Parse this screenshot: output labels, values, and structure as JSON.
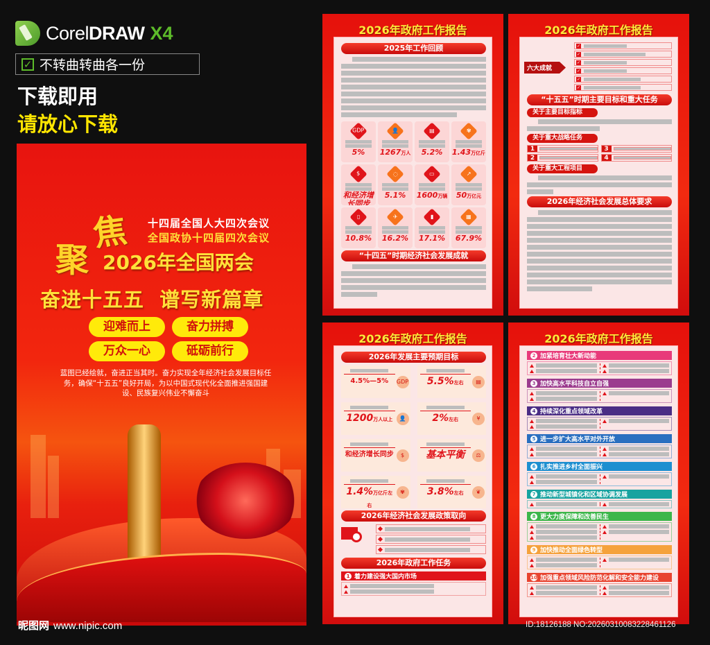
{
  "header": {
    "logo_text": "Corel",
    "logo_bold": "DRAW",
    "logo_version": "X4",
    "checkbox_label": "不转曲转曲各一份",
    "line1": "下载即用",
    "line2": "请放心下载"
  },
  "poster": {
    "ju1": "聚",
    "ju2": "焦",
    "line1": "十四届全国人大四次会议",
    "line2": "全国政协十四届四次会议",
    "title": "2026年全国两会",
    "slogan": "奋进十五五  谱写新篇章",
    "pills": [
      "迎难而上",
      "奋力拼搏",
      "万众一心",
      "砥砺前行"
    ],
    "paragraph": "蓝图已经绘就，奋进正当其时。奋力实现全年经济社会发展目标任务，确保“十五五”良好开局，为以中国式现代化全面推进强国建设、民族复兴伟业不懈奋斗"
  },
  "panel_title": "2026年政府工作报告",
  "panel1": {
    "sec1": "2025年工作回顾",
    "stats": [
      {
        "icon": "gdp",
        "v": "5%",
        "u": ""
      },
      {
        "icon": "person",
        "v": "1267",
        "u": "万人"
      },
      {
        "icon": "document",
        "v": "5.2%",
        "u": ""
      },
      {
        "icon": "wheat",
        "v": "1.43",
        "u": "万亿斤"
      },
      {
        "icon": "money-bag",
        "v": "和经济增长同步",
        "u": ""
      },
      {
        "icon": "cycle",
        "v": "5.1%",
        "u": ""
      },
      {
        "icon": "car",
        "v": "1600",
        "u": "万辆"
      },
      {
        "icon": "chart",
        "v": "50",
        "u": "万亿元"
      },
      {
        "icon": "phone",
        "v": "10.8%",
        "u": ""
      },
      {
        "icon": "plane",
        "v": "16.2%",
        "u": ""
      },
      {
        "icon": "luggage",
        "v": "17.1%",
        "u": ""
      },
      {
        "icon": "building",
        "v": "67.9%",
        "u": ""
      }
    ],
    "sec2": "“十四五”时期经济社会发展成就"
  },
  "panel2": {
    "arrow_label": "六大成就",
    "sec1": "“十五五”时期主要目标和重大任务",
    "sub1": "关于主要目标指标",
    "sub2": "关于重大战略任务",
    "nums": [
      "1",
      "2",
      "3",
      "4"
    ],
    "sub3": "关于重大工程项目",
    "sec2": "2026年经济社会发展总体要求"
  },
  "panel3": {
    "sec1": "2026年发展主要预期目标",
    "targets": [
      {
        "icon": "gdp",
        "v": "4.5%—5%",
        "u": ""
      },
      {
        "icon": "document",
        "v": "5.5%",
        "u": "左右"
      },
      {
        "icon": "person",
        "v": "1200",
        "u": "万人以上"
      },
      {
        "icon": "yuan",
        "v": "2%",
        "u": "左右"
      },
      {
        "icon": "money-bag",
        "v": "和经济增长同步",
        "u": ""
      },
      {
        "icon": "scale",
        "v": "基本平衡",
        "u": ""
      },
      {
        "icon": "wheat",
        "v": "1.4%",
        "u": "万亿斤左右"
      },
      {
        "icon": "leaf",
        "v": "3.8%",
        "u": "左右"
      }
    ],
    "sec2": "2026年经济社会发展政策取向",
    "sec3": "2026年政府工作任务",
    "task1_num": "1",
    "task1": "着力建设强大国内市场"
  },
  "panel4": {
    "tasks": [
      {
        "n": "2",
        "t": "加紧培育壮大新动能",
        "color": "#e83a7a"
      },
      {
        "n": "3",
        "t": "加快高水平科技自立自强",
        "color": "#9b3b8e"
      },
      {
        "n": "4",
        "t": "持续深化重点领域改革",
        "color": "#4a2d85"
      },
      {
        "n": "5",
        "t": "进一步扩大高水平对外开放",
        "color": "#2a6fc0"
      },
      {
        "n": "6",
        "t": "扎实推进乡村全面振兴",
        "color": "#1e8fd0"
      },
      {
        "n": "7",
        "t": "推动新型城镇化和区域协调发展",
        "color": "#17a3a0"
      },
      {
        "n": "8",
        "t": "更大力度保障和改善民生",
        "color": "#3cb64a"
      },
      {
        "n": "9",
        "t": "加快推动全面绿色转型",
        "color": "#f5a23c"
      },
      {
        "n": "10",
        "t": "加强重点领域风险防范化解和安全能力建设",
        "color": "#e8432f"
      }
    ]
  },
  "watermark": {
    "site_name": "昵图网",
    "url": "www.nipic.com",
    "id_text": "ID:18126188 NO:20260310083228461126"
  }
}
